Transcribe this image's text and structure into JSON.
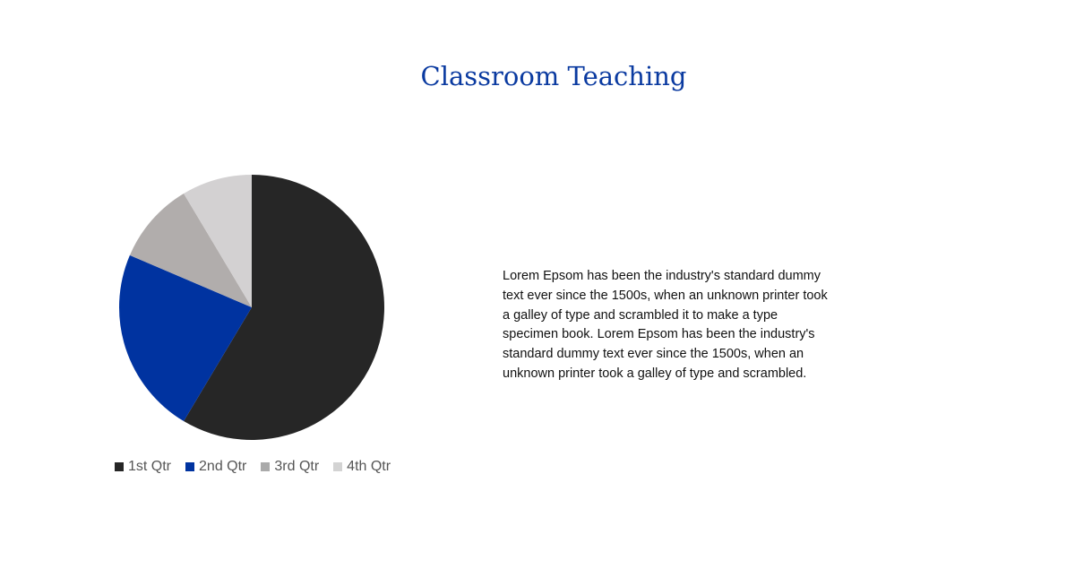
{
  "chart_data": {
    "type": "pie",
    "title": "Classroom Teaching",
    "categories": [
      "1st Qtr",
      "2nd Qtr",
      "3rd Qtr",
      "4th Qtr"
    ],
    "values": [
      8.2,
      3.2,
      1.4,
      1.2
    ],
    "colors": [
      "#262626",
      "#0033a0",
      "#b1adac",
      "#d3d1d2"
    ],
    "legend_colors": [
      "#262626",
      "#0033a0",
      "#aaaaaa",
      "#d3d3d3"
    ],
    "legend": "bottom",
    "start_angle": "top, clockwise"
  },
  "body_text": "Lorem Epsom has been the industry's standard dummy text ever since the 1500s, when an unknown printer took a galley of type and scrambled it to make a type specimen book. Lorem Epsom has been the industry's standard dummy text ever since the 1500s, when an unknown printer took a galley of type and scrambled."
}
